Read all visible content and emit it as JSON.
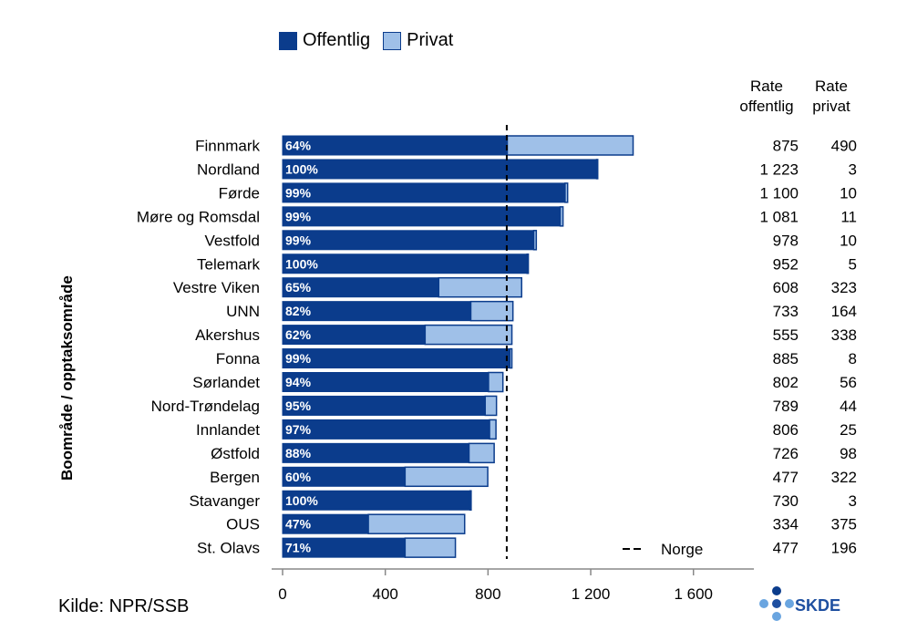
{
  "legend": {
    "offentlig_label": "Offentlig",
    "privat_label": "Privat"
  },
  "column_headers": {
    "rate_offentlig_line1": "Rate",
    "rate_offentlig_line2": "offentlig",
    "rate_privat_line1": "Rate",
    "rate_privat_line2": "privat"
  },
  "y_axis_label": "Boområde / opptaksområde",
  "source": "Kilde: NPR/SSB",
  "logo_text": "SKDE",
  "reference_label": "Norge",
  "colors": {
    "offentlig": "#0b3c8c",
    "privat": "#9fc0e8",
    "axis": "#888888"
  },
  "chart_data": {
    "type": "bar",
    "orientation": "horizontal",
    "stacked": true,
    "categories": [
      "Finnmark",
      "Nordland",
      "Førde",
      "Møre og Romsdal",
      "Vestfold",
      "Telemark",
      "Vestre Viken",
      "UNN",
      "Akershus",
      "Fonna",
      "Sørlandet",
      "Nord-Trøndelag",
      "Innlandet",
      "Østfold",
      "Bergen",
      "Stavanger",
      "OUS",
      "St. Olavs"
    ],
    "series": [
      {
        "name": "Offentlig",
        "values": [
          875,
          1223,
          1100,
          1081,
          978,
          952,
          608,
          733,
          555,
          885,
          802,
          789,
          806,
          726,
          477,
          730,
          334,
          477
        ]
      },
      {
        "name": "Privat",
        "values": [
          490,
          3,
          10,
          11,
          10,
          5,
          323,
          164,
          338,
          8,
          56,
          44,
          25,
          98,
          322,
          3,
          375,
          196
        ]
      }
    ],
    "bar_labels": [
      "64%",
      "100%",
      "99%",
      "99%",
      "99%",
      "100%",
      "65%",
      "82%",
      "62%",
      "99%",
      "94%",
      "95%",
      "97%",
      "88%",
      "60%",
      "100%",
      "47%",
      "71%"
    ],
    "rate_offentlig_labels": [
      "875",
      "1 223",
      "1 100",
      "1 081",
      "978",
      "952",
      "608",
      "733",
      "555",
      "885",
      "802",
      "789",
      "806",
      "726",
      "477",
      "730",
      "334",
      "477"
    ],
    "rate_privat_labels": [
      "490",
      "3",
      "10",
      "11",
      "10",
      "5",
      "323",
      "164",
      "338",
      "8",
      "56",
      "44",
      "25",
      "98",
      "322",
      "3",
      "375",
      "196"
    ],
    "reference_line": {
      "name": "Norge",
      "value": 873
    },
    "xlim": [
      0,
      1800
    ],
    "xticks": [
      0,
      400,
      800,
      1200,
      1600
    ],
    "xtick_labels": [
      "0",
      "400",
      "800",
      "1 200",
      "1 600"
    ],
    "ylabel": "Boområde / opptaksområde",
    "legend_position": "top"
  }
}
